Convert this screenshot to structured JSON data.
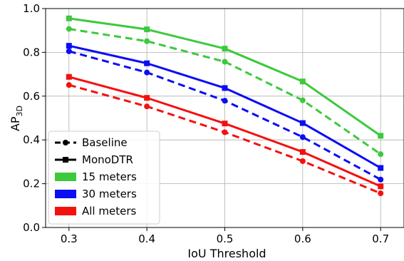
{
  "chart_data": {
    "type": "line",
    "xlabel": "IoU Threshold",
    "ylabel_main": "AP",
    "ylabel_sub": "3D",
    "x": [
      0.3,
      0.4,
      0.5,
      0.6,
      0.7
    ],
    "x_tick_labels": [
      "0.3",
      "0.4",
      "0.5",
      "0.6",
      "0.7"
    ],
    "xlim": [
      0.27,
      0.73
    ],
    "ylim": [
      0.0,
      1.0
    ],
    "y_tick_labels": [
      "0.0",
      "0.2",
      "0.4",
      "0.6",
      "0.8",
      "1.0"
    ],
    "grid": true,
    "legend_position": "lower-left",
    "series": [
      {
        "group": "15 meters",
        "method": "MonoDTR",
        "color": "#3dc93d",
        "linestyle": "solid",
        "marker": "square",
        "values": [
          0.955,
          0.905,
          0.817,
          0.667,
          0.419
        ]
      },
      {
        "group": "15 meters",
        "method": "Baseline",
        "color": "#3dc93d",
        "linestyle": "dashed",
        "marker": "circle",
        "values": [
          0.907,
          0.851,
          0.757,
          0.581,
          0.335
        ]
      },
      {
        "group": "30 meters",
        "method": "MonoDTR",
        "color": "#0c0cf5",
        "linestyle": "solid",
        "marker": "square",
        "values": [
          0.83,
          0.75,
          0.637,
          0.477,
          0.272
        ]
      },
      {
        "group": "30 meters",
        "method": "Baseline",
        "color": "#0c0cf5",
        "linestyle": "dashed",
        "marker": "circle",
        "values": [
          0.805,
          0.708,
          0.579,
          0.413,
          0.219
        ]
      },
      {
        "group": "All meters",
        "method": "MonoDTR",
        "color": "#f51010",
        "linestyle": "solid",
        "marker": "square",
        "values": [
          0.688,
          0.592,
          0.475,
          0.345,
          0.188
        ]
      },
      {
        "group": "All meters",
        "method": "Baseline",
        "color": "#f51010",
        "linestyle": "dashed",
        "marker": "circle",
        "values": [
          0.651,
          0.553,
          0.435,
          0.303,
          0.156
        ]
      }
    ],
    "legend": [
      {
        "label": "Baseline",
        "kind": "line",
        "linestyle": "dashed",
        "marker": "circle",
        "color": "#000000"
      },
      {
        "label": "MonoDTR",
        "kind": "line",
        "linestyle": "solid",
        "marker": "square",
        "color": "#000000"
      },
      {
        "label": "15 meters",
        "kind": "patch",
        "color": "#3dc93d"
      },
      {
        "label": "30 meters",
        "kind": "patch",
        "color": "#0c0cf5"
      },
      {
        "label": "All meters",
        "kind": "patch",
        "color": "#f51010"
      }
    ]
  }
}
